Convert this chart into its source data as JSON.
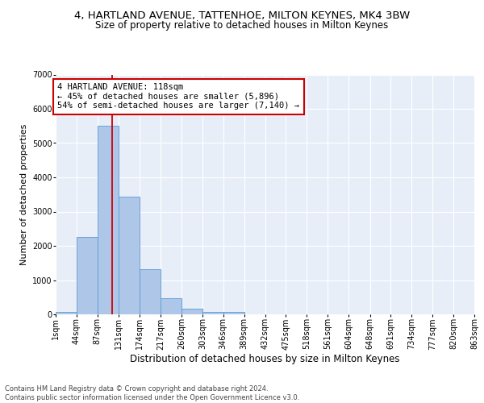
{
  "title1": "4, HARTLAND AVENUE, TATTENHOE, MILTON KEYNES, MK4 3BW",
  "title2": "Size of property relative to detached houses in Milton Keynes",
  "xlabel": "Distribution of detached houses by size in Milton Keynes",
  "ylabel": "Number of detached properties",
  "bar_values": [
    75,
    2270,
    5500,
    3430,
    1310,
    460,
    155,
    80,
    80,
    0,
    0,
    0,
    0,
    0,
    0,
    0,
    0,
    0,
    0,
    0
  ],
  "bin_edges": [
    1,
    44,
    87,
    131,
    174,
    217,
    260,
    303,
    346,
    389,
    432,
    475,
    518,
    561,
    604,
    648,
    691,
    734,
    777,
    820,
    863
  ],
  "tick_labels": [
    "1sqm",
    "44sqm",
    "87sqm",
    "131sqm",
    "174sqm",
    "217sqm",
    "260sqm",
    "303sqm",
    "346sqm",
    "389sqm",
    "432sqm",
    "475sqm",
    "518sqm",
    "561sqm",
    "604sqm",
    "648sqm",
    "691sqm",
    "734sqm",
    "777sqm",
    "820sqm",
    "863sqm"
  ],
  "bar_color": "#aec6e8",
  "bar_edge_color": "#5b9bd5",
  "vline_x": 118,
  "vline_color": "#cc0000",
  "annotation_text": "4 HARTLAND AVENUE: 118sqm\n← 45% of detached houses are smaller (5,896)\n54% of semi-detached houses are larger (7,140) →",
  "annotation_box_color": "#ffffff",
  "annotation_box_edge": "#cc0000",
  "ylim": [
    0,
    7000
  ],
  "yticks": [
    0,
    1000,
    2000,
    3000,
    4000,
    5000,
    6000,
    7000
  ],
  "bg_color": "#e8eef8",
  "grid_color": "#ffffff",
  "footer": "Contains HM Land Registry data © Crown copyright and database right 2024.\nContains public sector information licensed under the Open Government Licence v3.0.",
  "title1_fontsize": 9.5,
  "title2_fontsize": 8.5,
  "xlabel_fontsize": 8.5,
  "ylabel_fontsize": 8,
  "tick_fontsize": 7,
  "annotation_fontsize": 7.5,
  "footer_fontsize": 6
}
